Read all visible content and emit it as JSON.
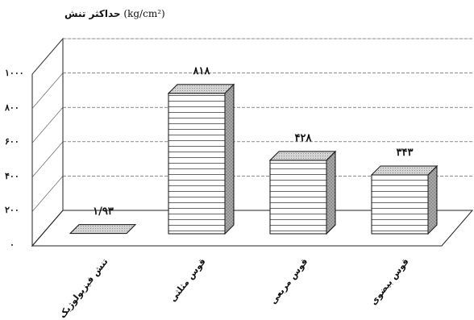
{
  "chart_data": {
    "type": "bar",
    "title": "حداکثر تنش",
    "ylabel_unit": "(kg/cm²)",
    "categories": [
      "تنش فیزیولوژیک",
      "قوس مثلثی",
      "قوس مربعی",
      "قوس بیضوی"
    ],
    "values": [
      1.93,
      818,
      428,
      343
    ],
    "value_labels": [
      "۱/۹۳",
      "۸۱۸",
      "۴۲۸",
      "۳۴۳"
    ],
    "y_tick_labels": [
      "۰",
      "۲۰۰",
      "۴۰۰",
      "۶۰۰",
      "۸۰۰",
      "۱۰۰۰"
    ],
    "y_ticks": [
      0,
      200,
      400,
      600,
      800,
      1000
    ],
    "ylim": [
      0,
      1000
    ],
    "style": "3d-bar",
    "grid": true,
    "bar_fill": "horizontal-stripes",
    "colors": {
      "bar_front": "#ffffff",
      "bar_top": "#d0d0d0",
      "bar_side": "#a8a8a8",
      "grid": "#555555"
    }
  }
}
